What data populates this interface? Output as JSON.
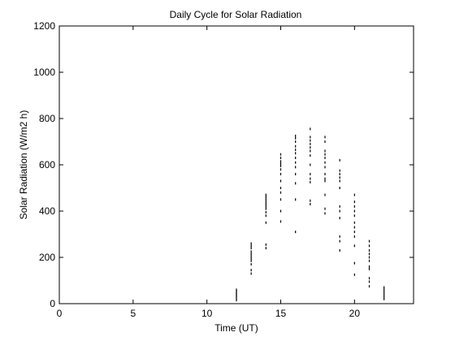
{
  "chart_data": {
    "type": "scatter",
    "title": "Daily Cycle for Solar Radiation",
    "xlabel": "Time (UT)",
    "ylabel": "Solar Radiation (W/m2 h)",
    "xlim": [
      0,
      24
    ],
    "ylim": [
      0,
      1200
    ],
    "xticks": [
      0,
      5,
      10,
      15,
      20
    ],
    "yticks": [
      0,
      200,
      400,
      600,
      800,
      1000,
      1200
    ],
    "grid": false,
    "marker": "point",
    "marker_color": "#000000",
    "series": [
      {
        "x": [
          12,
          12,
          12,
          12,
          12,
          12,
          12,
          12,
          13,
          13,
          13,
          13,
          13,
          13,
          13,
          13,
          13,
          13,
          13,
          14,
          14,
          14,
          14,
          14,
          14,
          14,
          14,
          14,
          14,
          14,
          14,
          15,
          15,
          15,
          15,
          15,
          15,
          15,
          15,
          15,
          15,
          15,
          15,
          15,
          16,
          16,
          16,
          16,
          16,
          16,
          16,
          16,
          16,
          16,
          16,
          16,
          16,
          17,
          17,
          17,
          17,
          17,
          17,
          17,
          17,
          17,
          17,
          17,
          17,
          17,
          18,
          18,
          18,
          18,
          18,
          18,
          18,
          18,
          18,
          18,
          18,
          18,
          18,
          19,
          19,
          19,
          19,
          19,
          19,
          19,
          19,
          19,
          19,
          19,
          19,
          20,
          20,
          20,
          20,
          20,
          20,
          20,
          20,
          20,
          20,
          20,
          20,
          21,
          21,
          21,
          21,
          21,
          21,
          21,
          21,
          21,
          21,
          21,
          22,
          22,
          22,
          22,
          22,
          22
        ],
        "y": [
          15,
          22,
          30,
          36,
          42,
          48,
          55,
          60,
          130,
          145,
          170,
          185,
          195,
          205,
          215,
          225,
          240,
          250,
          260,
          240,
          255,
          350,
          380,
          395,
          410,
          420,
          430,
          440,
          450,
          460,
          470,
          355,
          400,
          450,
          480,
          500,
          530,
          560,
          580,
          595,
          605,
          615,
          630,
          645,
          310,
          450,
          520,
          560,
          590,
          610,
          630,
          650,
          665,
          680,
          700,
          715,
          725,
          430,
          445,
          525,
          540,
          560,
          600,
          640,
          660,
          675,
          690,
          705,
          720,
          755,
          390,
          410,
          470,
          530,
          540,
          560,
          590,
          610,
          630,
          645,
          660,
          700,
          720,
          230,
          270,
          290,
          370,
          400,
          420,
          500,
          530,
          545,
          560,
          575,
          620,
          125,
          175,
          250,
          290,
          310,
          330,
          350,
          380,
          400,
          420,
          440,
          470,
          75,
          95,
          110,
          150,
          160,
          185,
          200,
          215,
          230,
          250,
          270,
          20,
          30,
          40,
          50,
          60,
          70
        ]
      }
    ]
  }
}
